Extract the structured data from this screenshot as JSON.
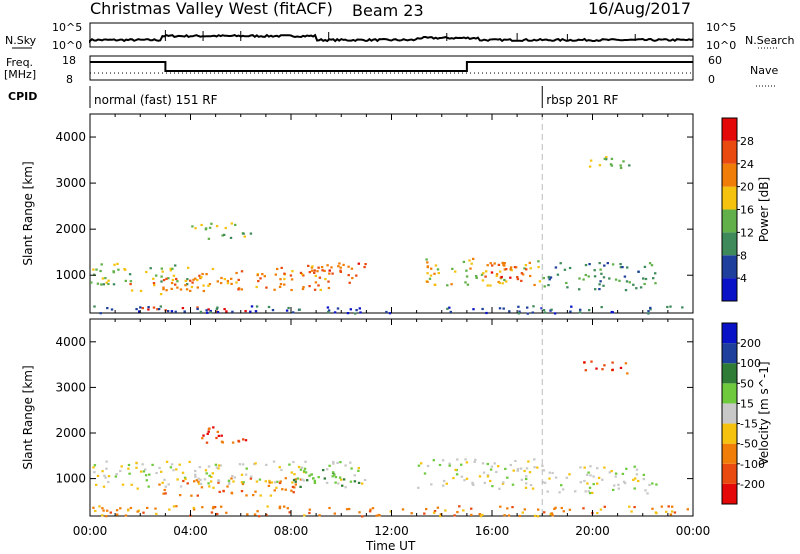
{
  "header": {
    "title": "Christmas Valley West (fitACF)",
    "beam": "Beam 23",
    "date": "16/Aug/2017"
  },
  "top_strip": {
    "nsky_label": "N.Sky",
    "nsky_ticks": [
      "10^5",
      "10^0"
    ],
    "nsearch_label": "N.Search",
    "nsearch_ticks": [
      "10^5",
      "10^0"
    ],
    "freq_label_1": "Freq.",
    "freq_label_2": "[MHz]",
    "freq_ticks": [
      "18",
      "8"
    ],
    "nave_label": "Nave",
    "nave_ticks": [
      "60",
      "0"
    ],
    "cpid_label": "CPID",
    "cpid_segments": [
      {
        "label": "normal (fast) 151 RF",
        "start_h": 0,
        "end_h": 18
      },
      {
        "label": "rbsp 201 RF",
        "start_h": 18,
        "end_h": 24
      }
    ],
    "freq_steps": [
      {
        "start_h": 0,
        "end_h": 3,
        "level": "high"
      },
      {
        "start_h": 3,
        "end_h": 15,
        "level": "low"
      },
      {
        "start_h": 15,
        "end_h": 24,
        "level": "high"
      }
    ]
  },
  "time_axis": {
    "label": "Time UT",
    "ticks": [
      "00:00",
      "04:00",
      "08:00",
      "12:00",
      "16:00",
      "20:00",
      "00:00"
    ],
    "range_h": [
      0,
      24
    ]
  },
  "chart_data": [
    {
      "type": "heatmap",
      "name": "power",
      "ylabel": "Slant Range [km]",
      "ylim": [
        180,
        4500
      ],
      "xlim_h": [
        0,
        24
      ],
      "yticks": [
        1000,
        2000,
        3000,
        4000
      ],
      "colorbar_label": "Power [dB]",
      "colorbar_ticks": [
        "4",
        "8",
        "12",
        "16",
        "20",
        "24",
        "28"
      ],
      "colors": [
        "#0a12c8",
        "#1e3f9c",
        "#3f8a5a",
        "#62b04a",
        "#f5c30f",
        "#f07d08",
        "#e84a10",
        "#e40808"
      ],
      "scatter_regions": [
        {
          "t": [
            0.0,
            4.0
          ],
          "r": [
            800,
            1300
          ],
          "level": 3
        },
        {
          "t": [
            1.5,
            4.5
          ],
          "r": [
            600,
            1000
          ],
          "level": 5
        },
        {
          "t": [
            4.0,
            10.5
          ],
          "r": [
            700,
            1250
          ],
          "level": 5
        },
        {
          "t": [
            8.5,
            11.0
          ],
          "r": [
            1000,
            1300
          ],
          "level": 6
        },
        {
          "t": [
            13.2,
            18.0
          ],
          "r": [
            800,
            1400
          ],
          "level": 4
        },
        {
          "t": [
            15.5,
            17.5
          ],
          "r": [
            900,
            1300
          ],
          "level": 6
        },
        {
          "t": [
            18.0,
            22.5
          ],
          "r": [
            700,
            1300
          ],
          "level": 2
        },
        {
          "t": [
            1.5,
            7.0
          ],
          "r": [
            230,
            330
          ],
          "level": 6
        },
        {
          "t": [
            0.0,
            24.0
          ],
          "r": [
            190,
            350
          ],
          "level": 1
        },
        {
          "t": [
            4.0,
            6.5
          ],
          "r": [
            1800,
            2150
          ],
          "level": 3
        },
        {
          "t": [
            19.5,
            21.5
          ],
          "r": [
            3300,
            3600
          ],
          "level": 3
        }
      ]
    },
    {
      "type": "heatmap",
      "name": "velocity",
      "ylabel": "Slant Range [km]",
      "ylim": [
        180,
        4500
      ],
      "xlim_h": [
        0,
        24
      ],
      "yticks": [
        1000,
        2000,
        3000,
        4000
      ],
      "colorbar_label": "Velocity [m s^-1]",
      "colorbar_ticks": [
        "200",
        "100",
        "50",
        "15",
        "-15",
        "-50",
        "-100",
        "-200"
      ],
      "colors": [
        "#0a12c8",
        "#1e3f9c",
        "#2f7c36",
        "#6ec93c",
        "#c8c8c8",
        "#f5c30f",
        "#f07d08",
        "#e84a10",
        "#e40808"
      ],
      "scatter_regions": [
        {
          "t": [
            0.0,
            4.0
          ],
          "r": [
            800,
            1400
          ],
          "level": 4
        },
        {
          "t": [
            2.5,
            8.5
          ],
          "r": [
            650,
            1050
          ],
          "level": 6
        },
        {
          "t": [
            4.0,
            11.0
          ],
          "r": [
            900,
            1400
          ],
          "level": 4
        },
        {
          "t": [
            8.0,
            11.0
          ],
          "r": [
            800,
            1250
          ],
          "level": 3
        },
        {
          "t": [
            13.0,
            18.0
          ],
          "r": [
            800,
            1450
          ],
          "level": 4
        },
        {
          "t": [
            18.0,
            22.5
          ],
          "r": [
            700,
            1300
          ],
          "level": 4
        },
        {
          "t": [
            0.0,
            24.0
          ],
          "r": [
            190,
            420
          ],
          "level": 6
        },
        {
          "t": [
            4.0,
            6.5
          ],
          "r": [
            1800,
            2150
          ],
          "level": 7
        },
        {
          "t": [
            19.5,
            21.5
          ],
          "r": [
            3300,
            3600
          ],
          "level": 7
        }
      ]
    }
  ],
  "marker": {
    "time_h": 18
  }
}
